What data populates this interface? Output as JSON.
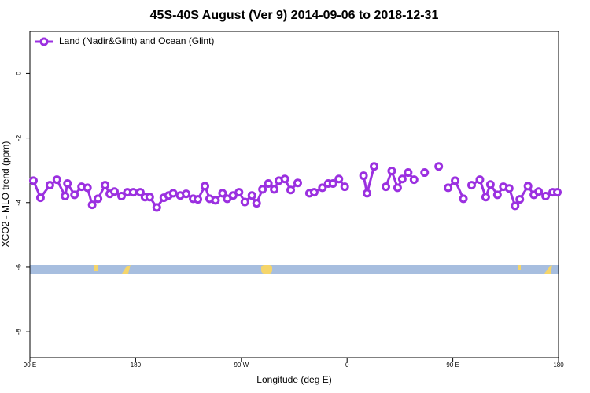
{
  "chart_data": {
    "type": "line",
    "title": "45S-40S August (Ver 9)   2014-09-06 to 2018-12-31",
    "x_label": "Longitude (deg E)",
    "y_label": "XCO2 - MLO trend (ppm)",
    "x": [
      93,
      99,
      107,
      113,
      120,
      122,
      128,
      134,
      139,
      143,
      148,
      154,
      158,
      162,
      168,
      173,
      178,
      184,
      188,
      192,
      198,
      204,
      208,
      212,
      218,
      223,
      229,
      233,
      239,
      243,
      248,
      254,
      258,
      263,
      268,
      273,
      279,
      283,
      288,
      293,
      298,
      302,
      307,
      312,
      318,
      323,
      328,
      332,
      339,
      344,
      348,
      353,
      358,
      366,
      374,
      377,
      383,
      387,
      393,
      398,
      403,
      407,
      412,
      417,
      421,
      426,
      432,
      438,
      442,
      446,
      452,
      459,
      462,
      466,
      473,
      478,
      482,
      488,
      493,
      498,
      503,
      507,
      514,
      519,
      523,
      529,
      535,
      539
    ],
    "series": [
      {
        "name": "Land (Nadir&Glint) and Ocean (Glint)",
        "color": "#9b30e0",
        "values": [
          -3.32,
          -3.85,
          -3.46,
          -3.29,
          -3.8,
          -3.41,
          -3.76,
          -3.51,
          -3.54,
          -4.07,
          -3.88,
          -3.46,
          -3.73,
          -3.66,
          -3.8,
          -3.68,
          -3.68,
          -3.68,
          -3.83,
          -3.83,
          -4.15,
          -3.85,
          -3.78,
          -3.71,
          -3.78,
          -3.73,
          -3.88,
          -3.9,
          -3.49,
          -3.88,
          -3.93,
          -3.71,
          -3.88,
          -3.78,
          -3.68,
          -3.98,
          -3.78,
          -4.02,
          -3.59,
          -3.41,
          -3.59,
          -3.32,
          -3.27,
          -3.61,
          -3.39,
          null,
          -3.71,
          -3.68,
          -3.54,
          -3.41,
          -3.41,
          -3.27,
          -3.51,
          null,
          -3.17,
          -3.71,
          -2.88,
          null,
          -3.51,
          -3.02,
          -3.54,
          -3.27,
          -3.07,
          -3.29,
          null,
          -3.07,
          null,
          -2.88,
          null,
          -3.54,
          -3.32,
          -3.88,
          null,
          -3.46,
          -3.29,
          -3.83,
          -3.44,
          -3.76,
          -3.51,
          -3.56,
          -4.1,
          -3.9,
          -3.49,
          -3.76,
          -3.66,
          -3.8,
          -3.68,
          -3.68
        ]
      }
    ],
    "xlim": [
      90,
      540
    ],
    "xticks": [
      {
        "value": 90,
        "label": "90 E"
      },
      {
        "value": 180,
        "label": "180"
      },
      {
        "value": 270,
        "label": "90 W"
      },
      {
        "value": 360,
        "label": "0"
      },
      {
        "value": 450,
        "label": "90 E"
      },
      {
        "value": 540,
        "label": "180"
      }
    ],
    "ylim": [
      -8.8,
      1.3
    ],
    "yticks": [
      0,
      -2,
      -4,
      -6,
      -8
    ],
    "legend": "top-left"
  }
}
